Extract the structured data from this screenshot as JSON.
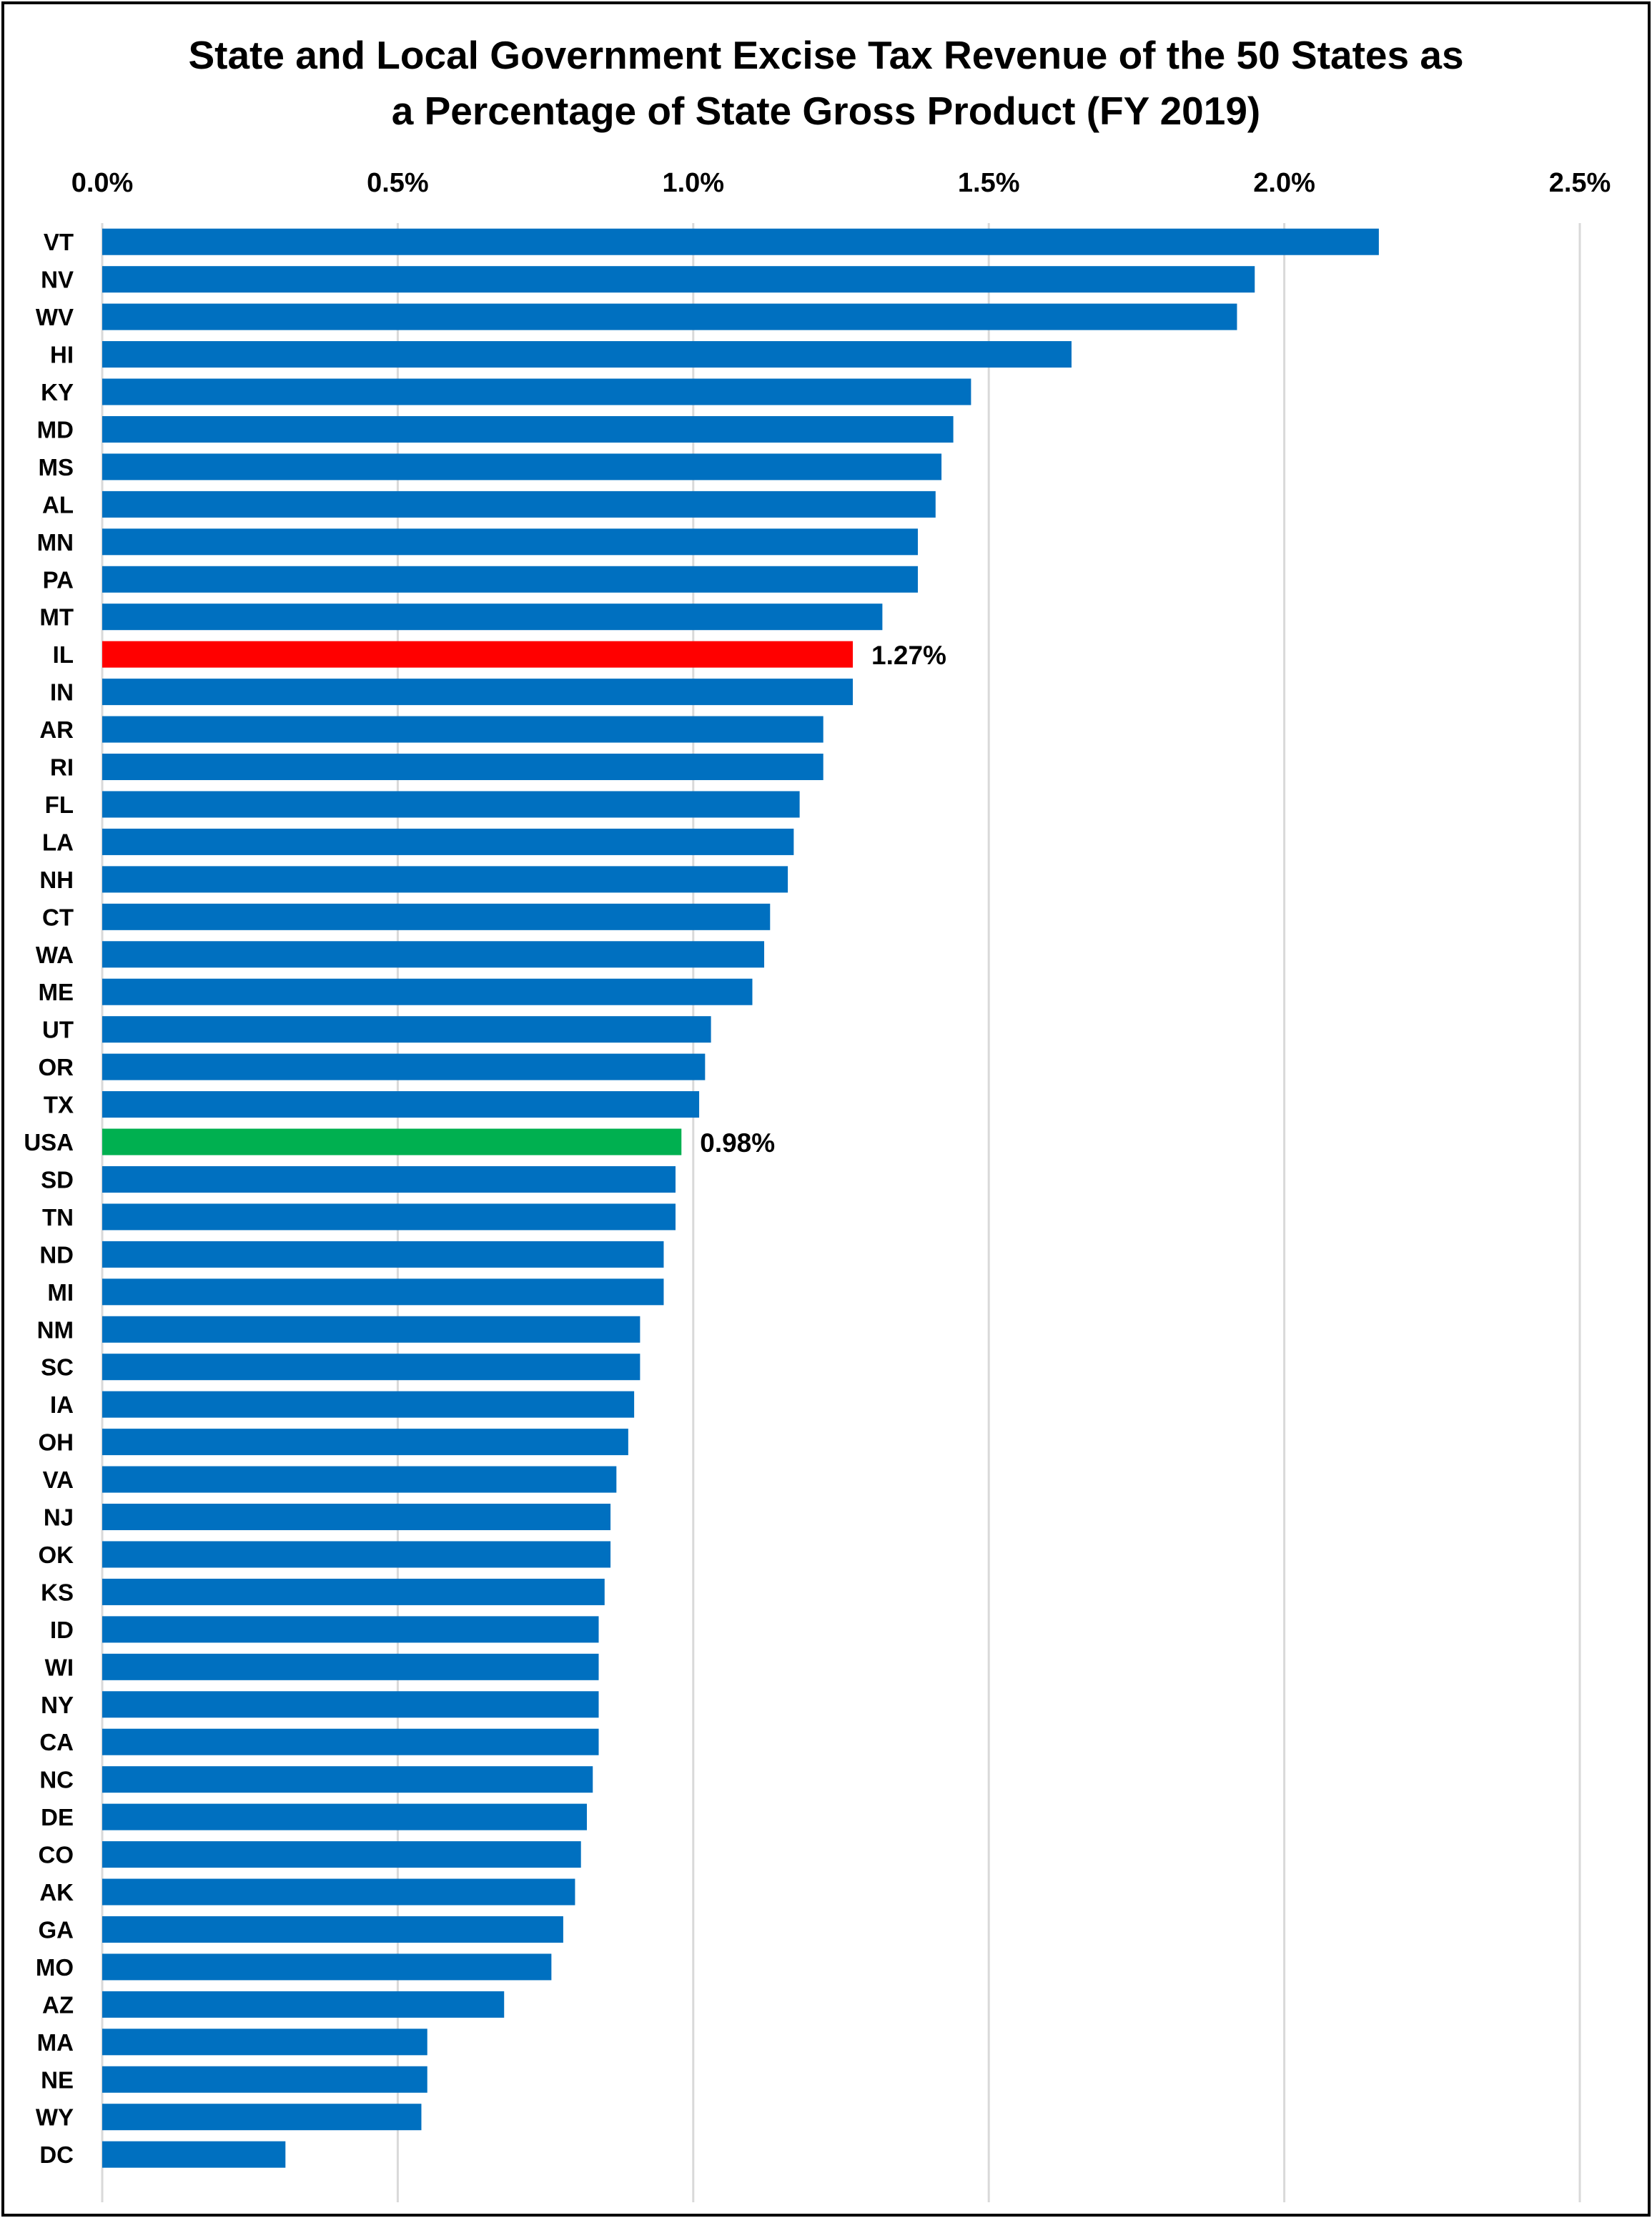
{
  "chart_data": {
    "type": "bar",
    "orientation": "horizontal",
    "title_lines": [
      "State and Local Government Excise Tax Revenue of the 50 States as",
      "a Percentage of State Gross Product (FY 2019)"
    ],
    "xlim": [
      0,
      2.5
    ],
    "x_ticks": [
      0,
      0.5,
      1.0,
      1.5,
      2.0,
      2.5
    ],
    "x_tick_labels": [
      "0.0%",
      "0.5%",
      "1.0%",
      "1.5%",
      "2.0%",
      "2.5%"
    ],
    "x_axis_position": "top",
    "grid": true,
    "legend": "none",
    "colors": {
      "default": "#0070C0",
      "highlight_state": "#FF0000",
      "national": "#00B050",
      "grid": "#D9D9D9"
    },
    "categories": [
      "VT",
      "NV",
      "WV",
      "HI",
      "KY",
      "MD",
      "MS",
      "AL",
      "MN",
      "PA",
      "MT",
      "IL",
      "IN",
      "AR",
      "RI",
      "FL",
      "LA",
      "NH",
      "CT",
      "WA",
      "ME",
      "UT",
      "OR",
      "TX",
      "USA",
      "SD",
      "TN",
      "ND",
      "MI",
      "NM",
      "SC",
      "IA",
      "OH",
      "VA",
      "NJ",
      "OK",
      "KS",
      "ID",
      "WI",
      "NY",
      "CA",
      "NC",
      "DE",
      "CO",
      "AK",
      "GA",
      "MO",
      "AZ",
      "MA",
      "NE",
      "WY",
      "DC"
    ],
    "values": [
      2.16,
      1.95,
      1.92,
      1.64,
      1.47,
      1.44,
      1.42,
      1.41,
      1.38,
      1.38,
      1.32,
      1.27,
      1.27,
      1.22,
      1.22,
      1.18,
      1.17,
      1.16,
      1.13,
      1.12,
      1.1,
      1.03,
      1.02,
      1.01,
      0.98,
      0.97,
      0.97,
      0.95,
      0.95,
      0.91,
      0.91,
      0.9,
      0.89,
      0.87,
      0.86,
      0.86,
      0.85,
      0.84,
      0.84,
      0.84,
      0.84,
      0.83,
      0.82,
      0.81,
      0.8,
      0.78,
      0.76,
      0.68,
      0.55,
      0.55,
      0.54,
      0.31
    ],
    "bar_colors": {
      "IL": "highlight_state",
      "USA": "national"
    },
    "data_labels": {
      "IL": "1.27%",
      "USA": "0.98%"
    }
  }
}
